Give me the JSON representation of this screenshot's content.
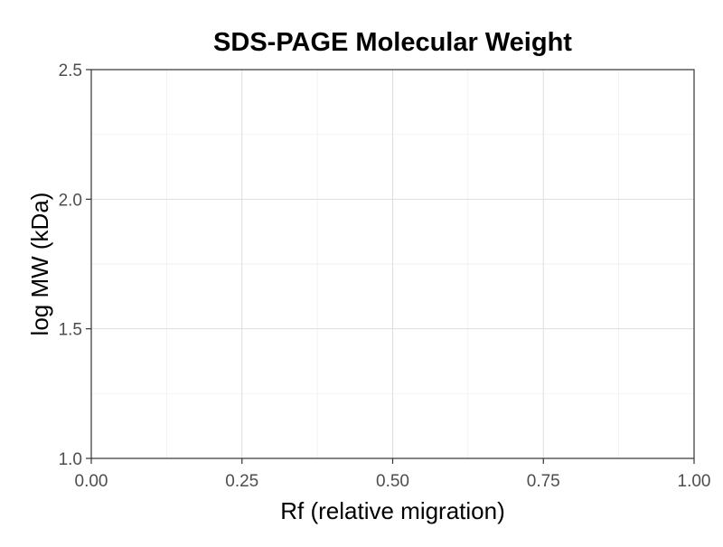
{
  "chart_data": {
    "type": "scatter",
    "title": "SDS-PAGE Molecular Weight",
    "xlabel": "Rf (relative migration)",
    "ylabel": "log MW (kDa)",
    "xlim": [
      0,
      1
    ],
    "ylim": [
      1,
      2.5
    ],
    "x_ticks": [
      0,
      0.25,
      0.5,
      0.75,
      1
    ],
    "x_tick_labels": [
      "0.00",
      "0.25",
      "0.50",
      "0.75",
      "1.00"
    ],
    "y_ticks": [
      1,
      1.5,
      2,
      2.5
    ],
    "y_tick_labels": [
      "1.0",
      "1.5",
      "2.0",
      "2.5"
    ],
    "grid": true,
    "series": []
  }
}
